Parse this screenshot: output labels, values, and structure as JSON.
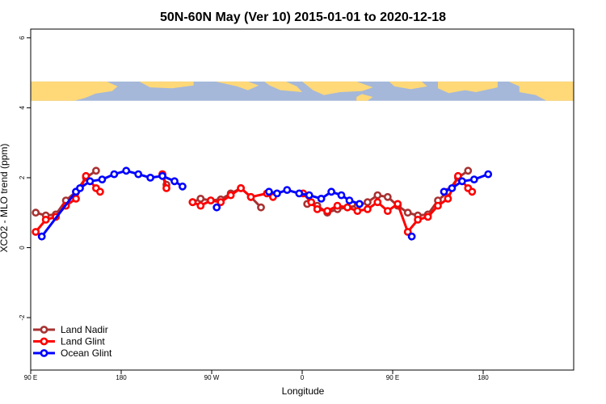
{
  "chart_data": {
    "type": "line",
    "title": "50N-60N May (Ver 10)   2015-01-01 to 2020-12-18",
    "xlabel": "Longitude",
    "ylabel": "XCO2 - MLO trend (ppm)",
    "xlim": [
      -90,
      180
    ],
    "ylim": [
      -3.5,
      6.25
    ],
    "x_ticks": [
      {
        "value": -90,
        "label": "90 E"
      },
      {
        "value": -45,
        "label": "180"
      },
      {
        "value": 0,
        "label": "90 W"
      },
      {
        "value": 45,
        "label": "0"
      },
      {
        "value": 90,
        "label": "90 E"
      },
      {
        "value": 135,
        "label": "180"
      }
    ],
    "y_ticks": [
      {
        "value": -2,
        "label": "-2"
      },
      {
        "value": 0,
        "label": "0"
      },
      {
        "value": 2,
        "label": "2"
      },
      {
        "value": 4,
        "label": "4"
      },
      {
        "value": 6,
        "label": "6"
      }
    ],
    "map_strip": {
      "y_range": [
        4.2,
        4.75
      ],
      "ocean_color": "#a5b8d9",
      "land_color": "#ffd878"
    },
    "legend": {
      "position": "bottom-left"
    },
    "series": [
      {
        "name": "Land Nadir",
        "color": "#a83232",
        "segments": [
          [
            [
              -87.5,
              1.0
            ],
            [
              -82.5,
              0.92
            ],
            [
              -77.5,
              0.95
            ],
            [
              -72.5,
              1.35
            ],
            [
              -67.5,
              1.6
            ],
            [
              -62.5,
              2.0
            ],
            [
              -57.5,
              2.2
            ]
          ],
          [
            [
              -24.5,
              2.1
            ],
            [
              -22.5,
              1.8
            ]
          ],
          [
            [
              -9.5,
              1.3
            ],
            [
              -5.5,
              1.4
            ],
            [
              -0.5,
              1.35
            ],
            [
              4.5,
              1.38
            ],
            [
              9.5,
              1.55
            ],
            [
              14.5,
              1.7
            ],
            [
              19.5,
              1.45
            ],
            [
              24.5,
              1.15
            ]
          ],
          [
            [
              47.5,
              1.25
            ],
            [
              52.5,
              1.2
            ],
            [
              57.5,
              1.0
            ],
            [
              62.5,
              1.1
            ],
            [
              67.5,
              1.15
            ],
            [
              72.5,
              1.2
            ],
            [
              77.5,
              1.3
            ],
            [
              82.5,
              1.5
            ],
            [
              87.5,
              1.45
            ],
            [
              92.5,
              1.2
            ],
            [
              97.5,
              1.0
            ],
            [
              102.5,
              0.92
            ],
            [
              107.5,
              0.95
            ],
            [
              112.5,
              1.35
            ],
            [
              117.5,
              1.6
            ],
            [
              122.5,
              2.0
            ],
            [
              127.5,
              2.2
            ]
          ]
        ]
      },
      {
        "name": "Land Glint",
        "color": "#ff0000",
        "segments": [
          [
            [
              -87.5,
              0.45
            ],
            [
              -82.5,
              0.8
            ],
            [
              -77.5,
              0.88
            ],
            [
              -72.5,
              1.2
            ],
            [
              -67.5,
              1.4
            ],
            [
              -62.5,
              2.05
            ],
            [
              -57.5,
              1.7
            ],
            [
              -55.5,
              1.6
            ]
          ],
          [
            [
              -24.5,
              2.1
            ],
            [
              -22.5,
              1.7
            ]
          ],
          [
            [
              -9.5,
              1.3
            ],
            [
              -5.5,
              1.2
            ],
            [
              -0.5,
              1.35
            ],
            [
              4.5,
              1.3
            ],
            [
              9.5,
              1.5
            ],
            [
              14.5,
              1.7
            ],
            [
              19.5,
              1.45
            ],
            [
              27.5,
              1.55
            ],
            [
              30.5,
              1.45
            ]
          ],
          [
            [
              45.5,
              1.55
            ],
            [
              49.5,
              1.3
            ],
            [
              52.5,
              1.1
            ],
            [
              57.5,
              1.05
            ],
            [
              62.5,
              1.2
            ],
            [
              67.5,
              1.15
            ],
            [
              72.5,
              1.05
            ],
            [
              77.5,
              1.1
            ],
            [
              82.5,
              1.3
            ],
            [
              87.5,
              1.05
            ],
            [
              92.5,
              1.25
            ],
            [
              97.5,
              0.45
            ],
            [
              102.5,
              0.8
            ],
            [
              107.5,
              0.88
            ],
            [
              112.5,
              1.2
            ],
            [
              117.5,
              1.4
            ],
            [
              122.5,
              2.05
            ],
            [
              127.5,
              1.7
            ],
            [
              129.5,
              1.6
            ]
          ]
        ]
      },
      {
        "name": "Ocean Glint",
        "color": "#0000ff",
        "segments": [
          [
            [
              -84.5,
              0.32
            ],
            [
              -67.5,
              1.6
            ],
            [
              -65.5,
              1.7
            ],
            [
              -60.5,
              1.9
            ],
            [
              -54.5,
              1.95
            ],
            [
              -48.5,
              2.1
            ],
            [
              -42.5,
              2.2
            ],
            [
              -36.5,
              2.1
            ],
            [
              -30.5,
              2.0
            ],
            [
              -24.5,
              2.05
            ],
            [
              -18.5,
              1.9
            ],
            [
              -14.5,
              1.75
            ]
          ],
          [
            [
              2.5,
              1.15
            ]
          ],
          [
            [
              28.5,
              1.6
            ],
            [
              32.5,
              1.55
            ],
            [
              37.5,
              1.65
            ],
            [
              43.5,
              1.55
            ],
            [
              48.5,
              1.5
            ],
            [
              54.5,
              1.4
            ],
            [
              59.5,
              1.6
            ],
            [
              64.5,
              1.5
            ],
            [
              68.5,
              1.35
            ],
            [
              73.5,
              1.25
            ]
          ],
          [
            [
              99.5,
              0.32
            ]
          ],
          [
            [
              115.5,
              1.6
            ],
            [
              119.5,
              1.7
            ],
            [
              124.5,
              1.9
            ],
            [
              130.5,
              1.95
            ],
            [
              137.5,
              2.1
            ]
          ]
        ]
      }
    ]
  }
}
